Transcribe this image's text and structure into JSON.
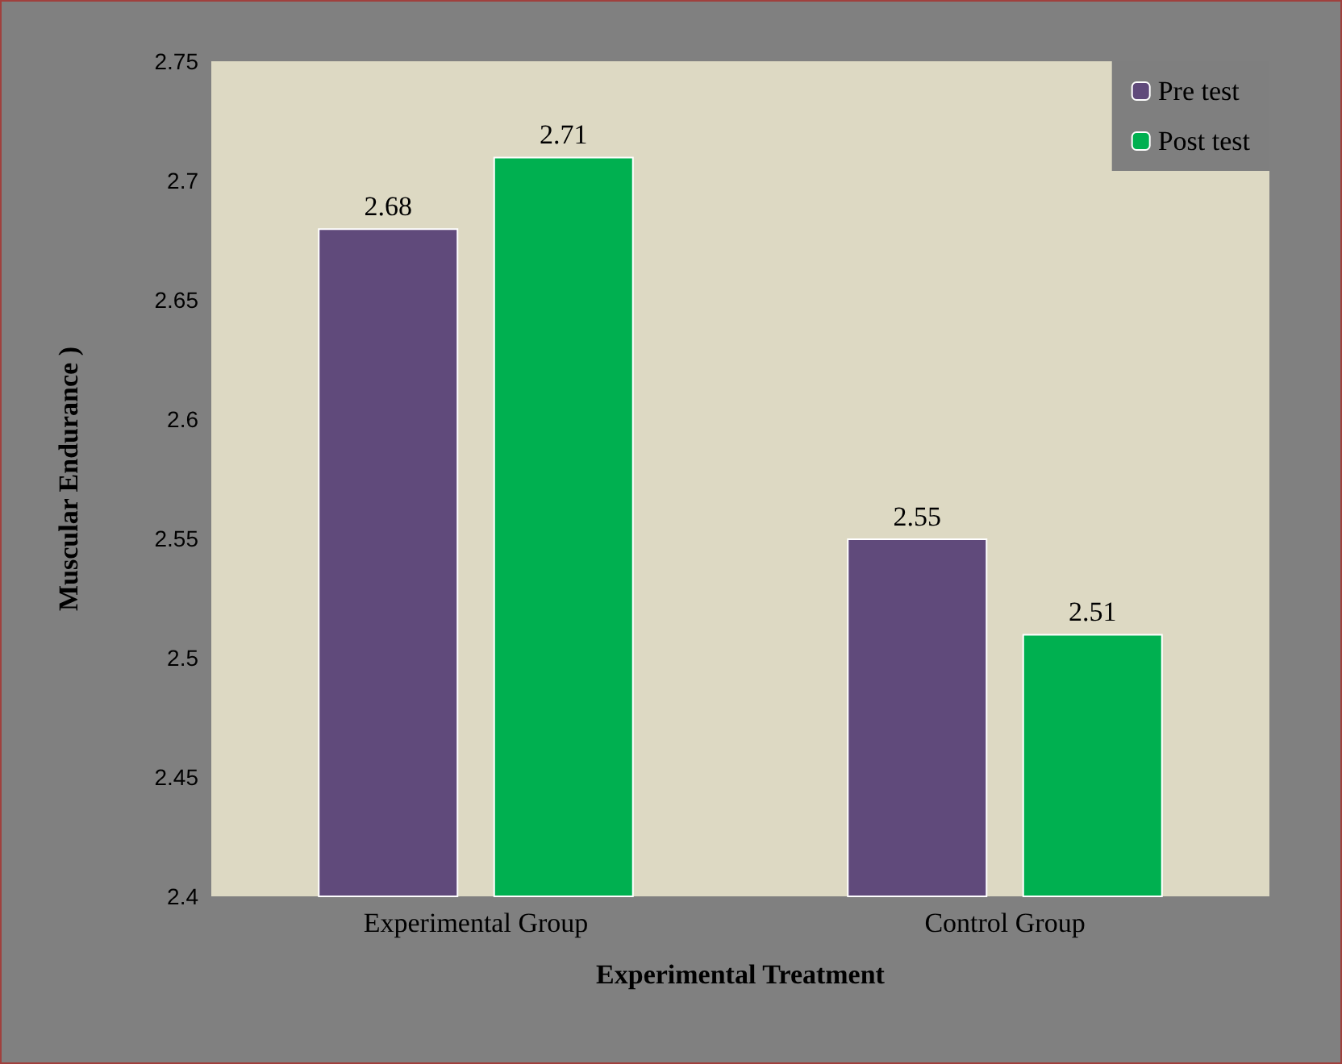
{
  "chart_data": {
    "type": "bar",
    "xlabel": "Experimental Treatment",
    "ylabel": "Muscular Endurance )",
    "categories": [
      "Experimental Group",
      "Control Group"
    ],
    "series": [
      {
        "name": "Pre test",
        "color": "#604a7b",
        "values": [
          2.68,
          2.55
        ]
      },
      {
        "name": "Post test",
        "color": "#00b050",
        "values": [
          2.71,
          2.51
        ]
      }
    ],
    "ylim": [
      2.4,
      2.75
    ],
    "yticks": [
      2.4,
      2.45,
      2.5,
      2.55,
      2.6,
      2.65,
      2.7,
      2.75
    ],
    "grid": false,
    "legend": "top right",
    "data_labels": true
  }
}
